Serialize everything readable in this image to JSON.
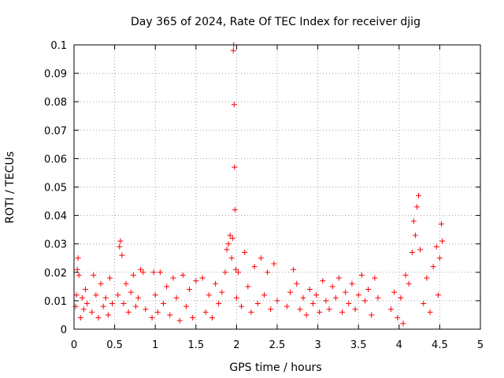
{
  "chart_data": {
    "type": "scatter",
    "title": "Day 365 of 2024, Rate Of TEC Index for receiver djig",
    "xlabel": "GPS time / hours",
    "ylabel": "ROTI / TECUs",
    "xlim": [
      0,
      5
    ],
    "ylim": [
      0,
      0.1
    ],
    "grid": true,
    "marker": "+",
    "marker_color": "#ff0000",
    "x_ticks": [
      {
        "value": 0,
        "label": "0"
      },
      {
        "value": 0.5,
        "label": "0.5"
      },
      {
        "value": 1,
        "label": "1"
      },
      {
        "value": 1.5,
        "label": "1.5"
      },
      {
        "value": 2,
        "label": "2"
      },
      {
        "value": 2.5,
        "label": "2.5"
      },
      {
        "value": 3,
        "label": "3"
      },
      {
        "value": 3.5,
        "label": "3.5"
      },
      {
        "value": 4,
        "label": "4"
      },
      {
        "value": 4.5,
        "label": "4.5"
      },
      {
        "value": 5,
        "label": "5"
      }
    ],
    "y_ticks": [
      {
        "value": 0,
        "label": "0"
      },
      {
        "value": 0.01,
        "label": "0.01"
      },
      {
        "value": 0.02,
        "label": "0.02"
      },
      {
        "value": 0.03,
        "label": "0.03"
      },
      {
        "value": 0.04,
        "label": "0.04"
      },
      {
        "value": 0.05,
        "label": "0.05"
      },
      {
        "value": 0.06,
        "label": "0.06"
      },
      {
        "value": 0.07,
        "label": "0.07"
      },
      {
        "value": 0.08,
        "label": "0.08"
      },
      {
        "value": 0.09,
        "label": "0.09"
      },
      {
        "value": 0.1,
        "label": "0.1"
      }
    ],
    "series": [
      {
        "name": "ROTI",
        "points": [
          [
            0.02,
            0.008
          ],
          [
            0.03,
            0.012
          ],
          [
            0.04,
            0.021
          ],
          [
            0.05,
            0.025
          ],
          [
            0.06,
            0.019
          ],
          [
            0.08,
            0.004
          ],
          [
            0.1,
            0.011
          ],
          [
            0.12,
            0.007
          ],
          [
            0.14,
            0.014
          ],
          [
            0.16,
            0.009
          ],
          [
            0.22,
            0.006
          ],
          [
            0.24,
            0.019
          ],
          [
            0.27,
            0.012
          ],
          [
            0.3,
            0.004
          ],
          [
            0.33,
            0.016
          ],
          [
            0.36,
            0.008
          ],
          [
            0.39,
            0.011
          ],
          [
            0.42,
            0.005
          ],
          [
            0.44,
            0.018
          ],
          [
            0.47,
            0.009
          ],
          [
            0.54,
            0.012
          ],
          [
            0.56,
            0.029
          ],
          [
            0.57,
            0.031
          ],
          [
            0.59,
            0.026
          ],
          [
            0.61,
            0.009
          ],
          [
            0.64,
            0.016
          ],
          [
            0.67,
            0.006
          ],
          [
            0.7,
            0.013
          ],
          [
            0.73,
            0.019
          ],
          [
            0.76,
            0.008
          ],
          [
            0.79,
            0.011
          ],
          [
            0.82,
            0.021
          ],
          [
            0.85,
            0.02
          ],
          [
            0.88,
            0.007
          ],
          [
            0.96,
            0.004
          ],
          [
            0.98,
            0.02
          ],
          [
            1.0,
            0.012
          ],
          [
            1.03,
            0.006
          ],
          [
            1.06,
            0.02
          ],
          [
            1.1,
            0.009
          ],
          [
            1.14,
            0.015
          ],
          [
            1.18,
            0.005
          ],
          [
            1.22,
            0.018
          ],
          [
            1.26,
            0.011
          ],
          [
            1.3,
            0.003
          ],
          [
            1.34,
            0.019
          ],
          [
            1.38,
            0.008
          ],
          [
            1.42,
            0.014
          ],
          [
            1.46,
            0.004
          ],
          [
            1.5,
            0.017
          ],
          [
            1.58,
            0.018
          ],
          [
            1.62,
            0.006
          ],
          [
            1.66,
            0.012
          ],
          [
            1.7,
            0.004
          ],
          [
            1.74,
            0.016
          ],
          [
            1.78,
            0.009
          ],
          [
            1.82,
            0.013
          ],
          [
            1.86,
            0.02
          ],
          [
            1.88,
            0.028
          ],
          [
            1.9,
            0.03
          ],
          [
            1.92,
            0.033
          ],
          [
            1.94,
            0.025
          ],
          [
            1.95,
            0.032
          ],
          [
            1.96,
            0.098
          ],
          [
            1.965,
            0.1
          ],
          [
            1.97,
            0.079
          ],
          [
            1.975,
            0.057
          ],
          [
            1.98,
            0.042
          ],
          [
            1.99,
            0.021
          ],
          [
            2.0,
            0.011
          ],
          [
            2.02,
            0.02
          ],
          [
            2.06,
            0.008
          ],
          [
            2.1,
            0.027
          ],
          [
            2.14,
            0.015
          ],
          [
            2.18,
            0.006
          ],
          [
            2.22,
            0.022
          ],
          [
            2.26,
            0.009
          ],
          [
            2.3,
            0.025
          ],
          [
            2.34,
            0.012
          ],
          [
            2.38,
            0.02
          ],
          [
            2.42,
            0.007
          ],
          [
            2.46,
            0.023
          ],
          [
            2.5,
            0.01
          ],
          [
            2.62,
            0.008
          ],
          [
            2.66,
            0.013
          ],
          [
            2.7,
            0.021
          ],
          [
            2.74,
            0.016
          ],
          [
            2.78,
            0.007
          ],
          [
            2.82,
            0.011
          ],
          [
            2.86,
            0.005
          ],
          [
            2.9,
            0.014
          ],
          [
            2.94,
            0.009
          ],
          [
            2.98,
            0.012
          ],
          [
            3.02,
            0.006
          ],
          [
            3.06,
            0.017
          ],
          [
            3.1,
            0.01
          ],
          [
            3.14,
            0.007
          ],
          [
            3.18,
            0.015
          ],
          [
            3.22,
            0.011
          ],
          [
            3.26,
            0.018
          ],
          [
            3.3,
            0.006
          ],
          [
            3.34,
            0.013
          ],
          [
            3.38,
            0.009
          ],
          [
            3.42,
            0.016
          ],
          [
            3.46,
            0.007
          ],
          [
            3.5,
            0.012
          ],
          [
            3.54,
            0.019
          ],
          [
            3.58,
            0.01
          ],
          [
            3.62,
            0.014
          ],
          [
            3.66,
            0.005
          ],
          [
            3.7,
            0.018
          ],
          [
            3.74,
            0.011
          ],
          [
            3.9,
            0.007
          ],
          [
            3.94,
            0.013
          ],
          [
            3.98,
            0.004
          ],
          [
            4.02,
            0.011
          ],
          [
            4.05,
            0.002
          ],
          [
            4.08,
            0.019
          ],
          [
            4.12,
            0.016
          ],
          [
            4.16,
            0.027
          ],
          [
            4.18,
            0.038
          ],
          [
            4.2,
            0.033
          ],
          [
            4.22,
            0.043
          ],
          [
            4.24,
            0.047
          ],
          [
            4.26,
            0.028
          ],
          [
            4.3,
            0.009
          ],
          [
            4.34,
            0.018
          ],
          [
            4.38,
            0.006
          ],
          [
            4.42,
            0.022
          ],
          [
            4.46,
            0.029
          ],
          [
            4.48,
            0.012
          ],
          [
            4.5,
            0.025
          ],
          [
            4.52,
            0.037
          ],
          [
            4.53,
            0.031
          ]
        ]
      }
    ]
  }
}
